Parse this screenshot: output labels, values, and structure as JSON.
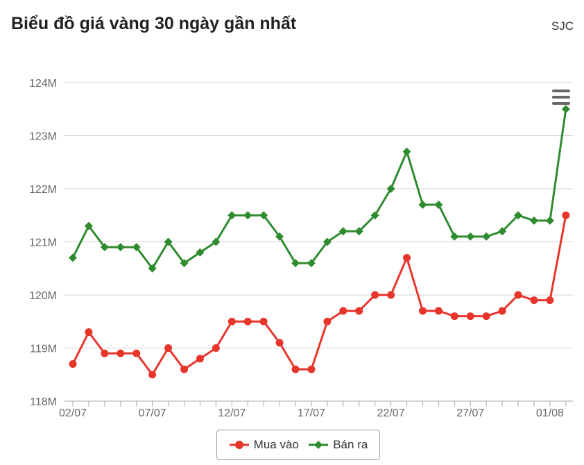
{
  "header": {
    "title": "Biểu đồ giá vàng 30 ngày gần nhất",
    "brand": "SJC"
  },
  "colors": {
    "buy": "#e8352c",
    "sell": "#2e8b2e",
    "grid": "#d0d0d0",
    "axis_text": "#666666"
  },
  "toolbar": {
    "menu_icon": "hamburger-menu-icon"
  },
  "chart_data": {
    "type": "line",
    "title": "Biểu đồ giá vàng 30 ngày gần nhất",
    "x": [
      "02/07",
      "03/07",
      "04/07",
      "05/07",
      "06/07",
      "07/07",
      "08/07",
      "09/07",
      "10/07",
      "11/07",
      "12/07",
      "13/07",
      "14/07",
      "15/07",
      "16/07",
      "17/07",
      "18/07",
      "19/07",
      "20/07",
      "21/07",
      "22/07",
      "23/07",
      "24/07",
      "25/07",
      "26/07",
      "27/07",
      "28/07",
      "29/07",
      "30/07",
      "31/07",
      "01/08",
      "02/08"
    ],
    "x_tick_labels": [
      "02/07",
      "07/07",
      "12/07",
      "17/07",
      "22/07",
      "27/07",
      "01/08"
    ],
    "series": [
      {
        "name": "Mua vào",
        "color": "#e8352c",
        "marker": "circle",
        "values": [
          118.7,
          119.3,
          118.9,
          118.9,
          118.9,
          118.5,
          119.0,
          118.6,
          118.8,
          119.0,
          119.5,
          119.5,
          119.5,
          119.1,
          118.6,
          118.6,
          119.5,
          119.7,
          119.7,
          120.0,
          120.0,
          120.7,
          119.7,
          119.7,
          119.6,
          119.6,
          119.6,
          119.7,
          120.0,
          119.9,
          119.9,
          121.5
        ]
      },
      {
        "name": "Bán ra",
        "color": "#2e8b2e",
        "marker": "diamond",
        "values": [
          120.7,
          121.3,
          120.9,
          120.9,
          120.9,
          120.5,
          121.0,
          120.6,
          120.8,
          121.0,
          121.5,
          121.5,
          121.5,
          121.1,
          120.6,
          120.6,
          121.0,
          121.2,
          121.2,
          121.5,
          122.0,
          122.7,
          121.7,
          121.7,
          121.1,
          121.1,
          121.1,
          121.2,
          121.5,
          121.4,
          121.4,
          123.5
        ]
      }
    ],
    "y_ticks": [
      "118M",
      "119M",
      "120M",
      "121M",
      "122M",
      "123M",
      "124M"
    ],
    "ylim": [
      118,
      124
    ],
    "y_unit": "M",
    "grid": true,
    "legend_position": "bottom-center"
  }
}
